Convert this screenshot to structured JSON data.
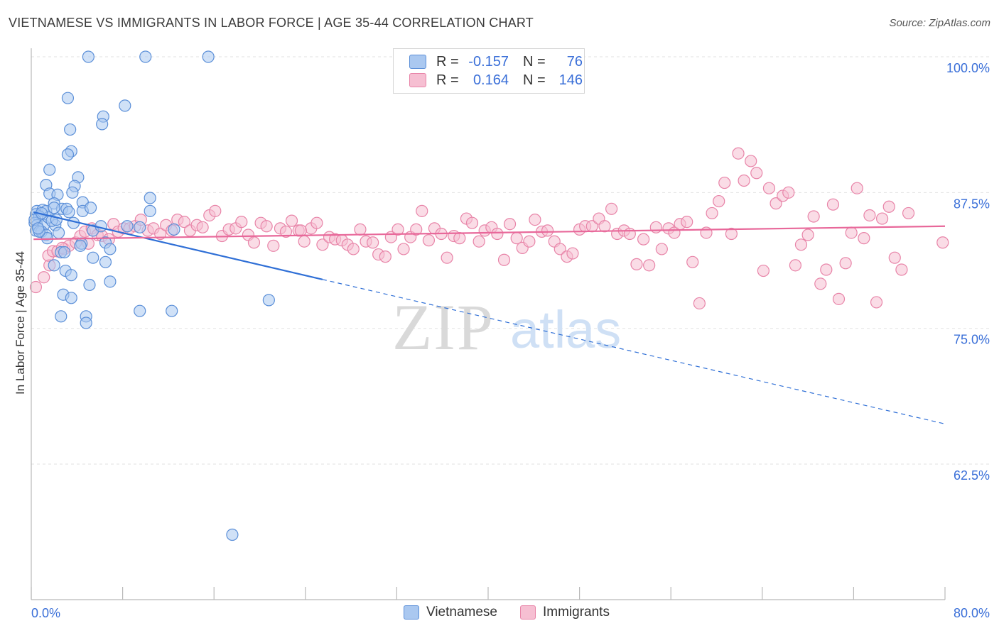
{
  "header": {
    "title": "VIETNAMESE VS IMMIGRANTS IN LABOR FORCE | AGE 35-44 CORRELATION CHART",
    "source": "Source: ZipAtlas.com"
  },
  "watermark": {
    "zip": "ZIP",
    "atlas": "atlas"
  },
  "colors": {
    "blue_fill": "#aac8f0",
    "blue_stroke": "#5b8fd8",
    "blue_line": "#2f6fd6",
    "pink_fill": "#f6bfd2",
    "pink_stroke": "#e884a8",
    "pink_line": "#e8689a",
    "grid": "#e2e2e2",
    "axis_text": "#3a6fd8"
  },
  "legend": {
    "rows": [
      {
        "r_label": "R =",
        "r_value": "-0.157",
        "n_label": "N =",
        "n_value": "76",
        "color": "blue"
      },
      {
        "r_label": "R =",
        "r_value": "0.164",
        "n_label": "N =",
        "n_value": "146",
        "color": "pink"
      }
    ]
  },
  "bottom_legend": [
    {
      "label": "Vietnamese",
      "color": "blue"
    },
    {
      "label": "Immigrants",
      "color": "pink"
    }
  ],
  "chart_data": {
    "type": "scatter",
    "title": "VIETNAMESE VS IMMIGRANTS IN LABOR FORCE | AGE 35-44 CORRELATION CHART",
    "xlabel": "",
    "ylabel": "In Labor Force | Age 35-44",
    "xlim": [
      0,
      80
    ],
    "ylim": [
      51.5,
      102
    ],
    "x_tick_labels": [
      "0.0%",
      "80.0%"
    ],
    "y_ticks": [
      62.5,
      75.0,
      87.5,
      100.0
    ],
    "y_tick_labels": [
      "62.5%",
      "75.0%",
      "87.5%",
      "100.0%"
    ],
    "grid": true,
    "series": [
      {
        "name": "Vietnamese",
        "r": -0.157,
        "n": 76,
        "trend": {
          "x_solid": [
            0.2,
            25.5
          ],
          "y_solid": [
            85.7,
            79.5
          ],
          "x_dashed": [
            25.5,
            80
          ],
          "y_dashed": [
            79.5,
            66.2
          ]
        },
        "points": [
          [
            5.0,
            100
          ],
          [
            10.0,
            100
          ],
          [
            15.5,
            100
          ],
          [
            3.2,
            96.2
          ],
          [
            8.2,
            95.5
          ],
          [
            6.3,
            94.5
          ],
          [
            6.2,
            93.8
          ],
          [
            3.4,
            93.3
          ],
          [
            3.5,
            91.3
          ],
          [
            3.2,
            91.0
          ],
          [
            1.6,
            89.6
          ],
          [
            4.1,
            88.9
          ],
          [
            1.3,
            88.2
          ],
          [
            3.8,
            88.1
          ],
          [
            1.6,
            87.4
          ],
          [
            2.3,
            87.3
          ],
          [
            3.6,
            87.5
          ],
          [
            10.4,
            87.0
          ],
          [
            4.5,
            86.6
          ],
          [
            2.0,
            86.5
          ],
          [
            0.5,
            85.8
          ],
          [
            1.0,
            85.9
          ],
          [
            1.3,
            85.8
          ],
          [
            2.7,
            86.0
          ],
          [
            3.1,
            86.0
          ],
          [
            4.5,
            85.8
          ],
          [
            5.2,
            86.1
          ],
          [
            10.4,
            85.8
          ],
          [
            2.0,
            86.1
          ],
          [
            0.4,
            85.5
          ],
          [
            0.7,
            85.3
          ],
          [
            0.3,
            84.7
          ],
          [
            0.5,
            84.5
          ],
          [
            1.1,
            84.5
          ],
          [
            2.1,
            84.5
          ],
          [
            0.4,
            84.0
          ],
          [
            0.9,
            83.9
          ],
          [
            1.3,
            83.6
          ],
          [
            1.4,
            83.3
          ],
          [
            0.7,
            83.9
          ],
          [
            3.3,
            85.7
          ],
          [
            5.4,
            84.0
          ],
          [
            6.1,
            84.4
          ],
          [
            8.4,
            84.4
          ],
          [
            12.5,
            84.1
          ],
          [
            9.5,
            84.3
          ],
          [
            4.4,
            82.8
          ],
          [
            6.5,
            82.9
          ],
          [
            4.3,
            82.6
          ],
          [
            6.9,
            82.3
          ],
          [
            2.6,
            82.0
          ],
          [
            2.9,
            82.0
          ],
          [
            5.4,
            81.5
          ],
          [
            2.0,
            80.8
          ],
          [
            6.5,
            81.1
          ],
          [
            3.0,
            80.3
          ],
          [
            3.5,
            79.9
          ],
          [
            5.1,
            79.0
          ],
          [
            6.9,
            79.3
          ],
          [
            2.8,
            78.1
          ],
          [
            3.5,
            77.8
          ],
          [
            9.5,
            76.6
          ],
          [
            12.3,
            76.6
          ],
          [
            2.6,
            76.1
          ],
          [
            4.8,
            76.1
          ],
          [
            4.8,
            75.5
          ],
          [
            20.8,
            77.6
          ],
          [
            17.6,
            56.0
          ],
          [
            0.3,
            85.0
          ],
          [
            0.6,
            84.2
          ],
          [
            1.5,
            85.2
          ],
          [
            2.4,
            83.8
          ],
          [
            1.8,
            84.9
          ],
          [
            0.9,
            85.6
          ],
          [
            3.7,
            84.7
          ],
          [
            2.2,
            85.0
          ]
        ]
      },
      {
        "name": "Immigrants",
        "r": 0.164,
        "n": 146,
        "trend": {
          "x_solid": [
            0.2,
            80
          ],
          "y_solid": [
            83.2,
            84.4
          ]
        },
        "points": [
          [
            0.4,
            78.8
          ],
          [
            1.1,
            79.7
          ],
          [
            1.6,
            80.8
          ],
          [
            1.5,
            81.7
          ],
          [
            1.9,
            82.1
          ],
          [
            2.3,
            82.1
          ],
          [
            2.9,
            82.3
          ],
          [
            3.3,
            82.6
          ],
          [
            3.9,
            82.9
          ],
          [
            4.3,
            83.5
          ],
          [
            4.7,
            83.9
          ],
          [
            5.0,
            82.8
          ],
          [
            5.3,
            84.2
          ],
          [
            5.8,
            83.6
          ],
          [
            6.2,
            83.5
          ],
          [
            6.8,
            83.2
          ],
          [
            7.2,
            84.6
          ],
          [
            7.6,
            83.9
          ],
          [
            8.1,
            84.2
          ],
          [
            8.6,
            84.2
          ],
          [
            9.1,
            84.4
          ],
          [
            9.6,
            85.0
          ],
          [
            10.2,
            84.0
          ],
          [
            10.7,
            84.2
          ],
          [
            11.3,
            83.7
          ],
          [
            11.8,
            84.5
          ],
          [
            12.3,
            84.0
          ],
          [
            12.8,
            85.0
          ],
          [
            13.4,
            84.8
          ],
          [
            13.9,
            84.0
          ],
          [
            14.5,
            84.5
          ],
          [
            15.0,
            84.3
          ],
          [
            15.6,
            85.4
          ],
          [
            16.1,
            85.8
          ],
          [
            16.7,
            83.5
          ],
          [
            17.3,
            84.1
          ],
          [
            17.9,
            84.2
          ],
          [
            18.4,
            84.8
          ],
          [
            19.0,
            83.6
          ],
          [
            19.5,
            82.9
          ],
          [
            20.1,
            84.7
          ],
          [
            20.6,
            84.4
          ],
          [
            21.2,
            82.6
          ],
          [
            21.8,
            84.2
          ],
          [
            22.3,
            83.9
          ],
          [
            22.8,
            84.9
          ],
          [
            23.4,
            84.0
          ],
          [
            23.9,
            83.0
          ],
          [
            24.5,
            84.2
          ],
          [
            25.0,
            84.7
          ],
          [
            25.5,
            82.7
          ],
          [
            26.1,
            83.4
          ],
          [
            26.6,
            83.2
          ],
          [
            27.2,
            83.1
          ],
          [
            27.7,
            82.7
          ],
          [
            28.2,
            82.3
          ],
          [
            28.8,
            84.1
          ],
          [
            29.3,
            83.0
          ],
          [
            29.9,
            82.9
          ],
          [
            30.4,
            81.8
          ],
          [
            31.0,
            81.6
          ],
          [
            31.5,
            83.4
          ],
          [
            32.1,
            84.1
          ],
          [
            32.6,
            82.3
          ],
          [
            33.2,
            83.4
          ],
          [
            33.7,
            84.1
          ],
          [
            34.2,
            85.8
          ],
          [
            34.8,
            83.1
          ],
          [
            35.3,
            84.2
          ],
          [
            35.9,
            83.7
          ],
          [
            36.4,
            81.5
          ],
          [
            37.0,
            83.5
          ],
          [
            37.5,
            83.3
          ],
          [
            38.1,
            85.1
          ],
          [
            38.6,
            84.7
          ],
          [
            39.2,
            83.0
          ],
          [
            39.7,
            84.0
          ],
          [
            40.3,
            84.3
          ],
          [
            40.8,
            83.7
          ],
          [
            41.4,
            81.3
          ],
          [
            41.9,
            84.6
          ],
          [
            42.5,
            83.3
          ],
          [
            43.0,
            82.4
          ],
          [
            43.6,
            83.0
          ],
          [
            44.1,
            85.0
          ],
          [
            44.7,
            83.9
          ],
          [
            45.2,
            84.0
          ],
          [
            45.8,
            83.0
          ],
          [
            46.3,
            82.3
          ],
          [
            46.9,
            81.6
          ],
          [
            47.4,
            81.9
          ],
          [
            48.0,
            84.1
          ],
          [
            48.5,
            84.4
          ],
          [
            49.1,
            84.4
          ],
          [
            49.7,
            85.1
          ],
          [
            50.2,
            84.4
          ],
          [
            50.8,
            86.0
          ],
          [
            51.3,
            83.7
          ],
          [
            51.9,
            84.0
          ],
          [
            52.4,
            83.7
          ],
          [
            53.0,
            80.9
          ],
          [
            53.6,
            83.2
          ],
          [
            54.1,
            80.8
          ],
          [
            54.7,
            84.3
          ],
          [
            55.2,
            82.3
          ],
          [
            55.8,
            84.2
          ],
          [
            56.3,
            83.8
          ],
          [
            56.8,
            84.6
          ],
          [
            57.4,
            84.8
          ],
          [
            57.9,
            81.1
          ],
          [
            58.5,
            77.3
          ],
          [
            59.1,
            83.8
          ],
          [
            59.6,
            85.6
          ],
          [
            60.2,
            86.7
          ],
          [
            60.7,
            88.4
          ],
          [
            61.3,
            83.7
          ],
          [
            61.9,
            91.1
          ],
          [
            62.4,
            88.6
          ],
          [
            63.0,
            90.4
          ],
          [
            63.5,
            89.3
          ],
          [
            64.1,
            80.3
          ],
          [
            64.6,
            87.9
          ],
          [
            65.2,
            86.5
          ],
          [
            65.8,
            87.2
          ],
          [
            66.3,
            87.5
          ],
          [
            66.9,
            80.8
          ],
          [
            67.4,
            82.7
          ],
          [
            68.0,
            83.6
          ],
          [
            68.5,
            85.3
          ],
          [
            69.1,
            79.1
          ],
          [
            69.6,
            80.4
          ],
          [
            70.2,
            86.4
          ],
          [
            70.7,
            77.7
          ],
          [
            71.3,
            81.0
          ],
          [
            71.8,
            83.8
          ],
          [
            72.3,
            87.9
          ],
          [
            72.9,
            83.3
          ],
          [
            73.4,
            85.4
          ],
          [
            74.0,
            77.4
          ],
          [
            74.5,
            85.1
          ],
          [
            75.1,
            86.2
          ],
          [
            75.6,
            81.5
          ],
          [
            76.2,
            80.4
          ],
          [
            76.8,
            85.6
          ],
          [
            79.8,
            82.9
          ],
          [
            23.6,
            84.0
          ],
          [
            2.7,
            82.4
          ]
        ]
      }
    ]
  }
}
